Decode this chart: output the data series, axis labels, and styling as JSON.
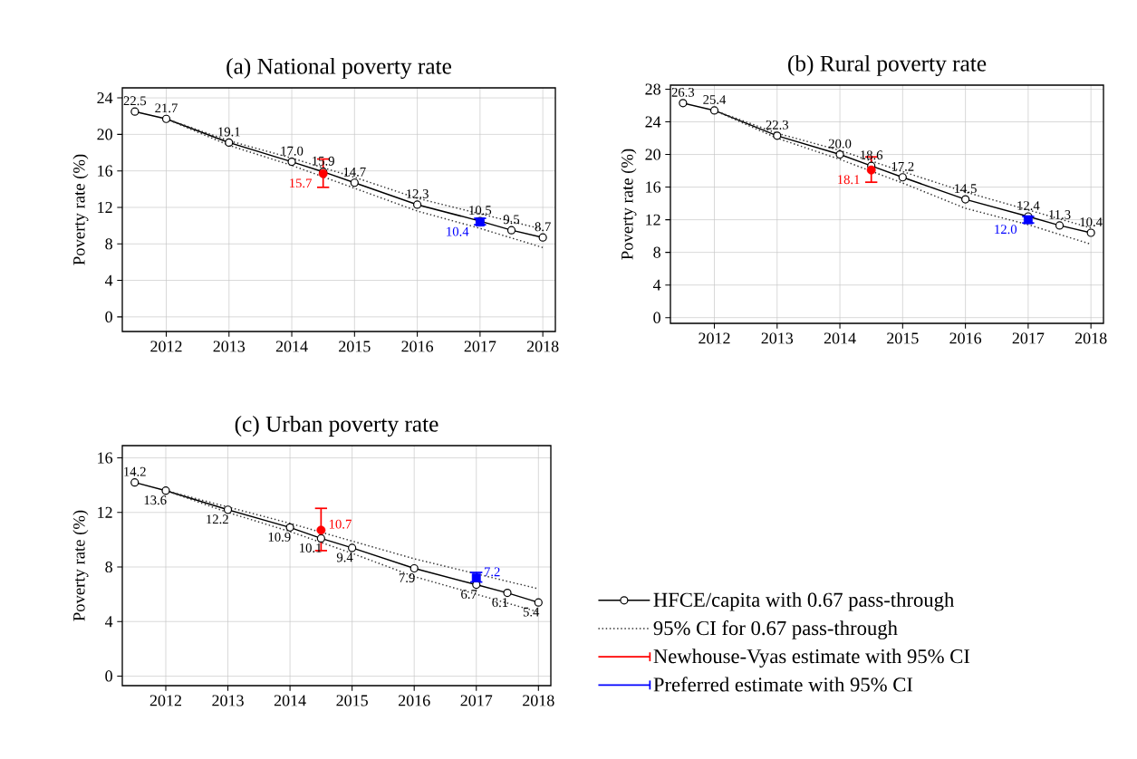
{
  "chart_data": [
    {
      "type": "line",
      "title": "(a) National poverty rate",
      "ylabel": "Poverty rate (%)",
      "xlim": [
        2011.3,
        2018.2
      ],
      "xticks": [
        2012,
        2013,
        2014,
        2015,
        2016,
        2017,
        2018
      ],
      "ylim": [
        -1.6,
        25.1
      ],
      "yticks": [
        0,
        4,
        8,
        12,
        16,
        20,
        24
      ],
      "grid": true,
      "series": [
        {
          "type": "line",
          "color": "#000000",
          "marker": "circle",
          "line_style": "solid",
          "x": [
            2011.5,
            2012,
            2013,
            2014,
            2014.5,
            2015,
            2016,
            2017,
            2017.5,
            2018
          ],
          "values": [
            22.5,
            21.7,
            19.1,
            17.0,
            15.9,
            14.7,
            12.3,
            10.5,
            9.5,
            8.7
          ],
          "value_labels": [
            "22.5",
            "21.7",
            "19.1",
            "17.0",
            "15.9",
            "14.7",
            "12.3",
            "10.5",
            "9.5",
            "8.7"
          ]
        },
        {
          "type": "line",
          "color": "#333333",
          "marker": "none",
          "line_style": "dotted",
          "x": [
            2012,
            2013,
            2014,
            2015,
            2016,
            2017,
            2018
          ],
          "values": [
            21.7,
            19.3,
            17.4,
            15.3,
            13.0,
            11.3,
            9.6
          ]
        },
        {
          "type": "line",
          "color": "#333333",
          "marker": "none",
          "line_style": "dotted",
          "x": [
            2012,
            2013,
            2014,
            2015,
            2016,
            2017,
            2018
          ],
          "values": [
            21.7,
            18.8,
            16.6,
            14.1,
            11.6,
            9.7,
            7.6
          ]
        },
        {
          "type": "scatter",
          "color": "#ff0000",
          "marker": "circle",
          "x": [
            2014.5
          ],
          "values": [
            15.7
          ],
          "errors": [
            [
              14.2,
              17.3
            ]
          ],
          "value_labels": [
            "15.7"
          ]
        },
        {
          "type": "scatter",
          "color": "#0000ff",
          "marker": "square",
          "x": [
            2017
          ],
          "values": [
            10.4
          ],
          "errors": [
            [
              10.1,
              10.8
            ]
          ],
          "value_labels": [
            "10.4"
          ]
        }
      ]
    },
    {
      "type": "line",
      "title": "(b) Rural poverty rate",
      "ylabel": "Poverty rate (%)",
      "xlim": [
        2011.3,
        2018.2
      ],
      "xticks": [
        2012,
        2013,
        2014,
        2015,
        2016,
        2017,
        2018
      ],
      "ylim": [
        -0.7,
        28.5
      ],
      "yticks": [
        0,
        4,
        8,
        12,
        16,
        20,
        24,
        28
      ],
      "grid": true,
      "series": [
        {
          "type": "line",
          "color": "#000000",
          "marker": "circle",
          "line_style": "solid",
          "x": [
            2011.5,
            2012,
            2013,
            2014,
            2014.5,
            2015,
            2016,
            2017,
            2017.5,
            2018
          ],
          "values": [
            26.3,
            25.4,
            22.3,
            20.0,
            18.6,
            17.2,
            14.5,
            12.4,
            11.3,
            10.4
          ],
          "value_labels": [
            "26.3",
            "25.4",
            "22.3",
            "20.0",
            "18.6",
            "17.2",
            "14.5",
            "12.4",
            "11.3",
            "10.4"
          ]
        },
        {
          "type": "line",
          "color": "#333333",
          "marker": "none",
          "line_style": "dotted",
          "x": [
            2012,
            2013,
            2014,
            2015,
            2016,
            2017,
            2018
          ],
          "values": [
            25.4,
            22.6,
            20.5,
            17.9,
            15.4,
            13.2,
            11.0
          ]
        },
        {
          "type": "line",
          "color": "#333333",
          "marker": "none",
          "line_style": "dotted",
          "x": [
            2012,
            2013,
            2014,
            2015,
            2016,
            2017,
            2018
          ],
          "values": [
            25.4,
            22.0,
            19.4,
            16.5,
            13.4,
            11.4,
            9.0
          ]
        },
        {
          "type": "scatter",
          "color": "#ff0000",
          "marker": "circle",
          "x": [
            2014.5
          ],
          "values": [
            18.1
          ],
          "errors": [
            [
              16.6,
              19.7
            ]
          ],
          "value_labels": [
            "18.1"
          ]
        },
        {
          "type": "scatter",
          "color": "#0000ff",
          "marker": "square",
          "x": [
            2017
          ],
          "values": [
            12.0
          ],
          "errors": [
            [
              11.6,
              12.4
            ]
          ],
          "value_labels": [
            "12.0"
          ]
        }
      ]
    },
    {
      "type": "line",
      "title": "(c) Urban poverty rate",
      "ylabel": "Poverty rate (%)",
      "xlim": [
        2011.3,
        2018.2
      ],
      "xticks": [
        2012,
        2013,
        2014,
        2015,
        2016,
        2017,
        2018
      ],
      "ylim": [
        -0.7,
        16.9
      ],
      "yticks": [
        0,
        4,
        8,
        12,
        16
      ],
      "grid": true,
      "legend": "right",
      "series": [
        {
          "type": "line",
          "name": "HFCE/capita with 0.67 pass-through",
          "color": "#000000",
          "marker": "circle",
          "line_style": "solid",
          "x": [
            2011.5,
            2012,
            2013,
            2014,
            2014.5,
            2015,
            2016,
            2017,
            2017.5,
            2018
          ],
          "values": [
            14.2,
            13.6,
            12.2,
            10.9,
            10.1,
            9.4,
            7.9,
            6.7,
            6.1,
            5.4
          ],
          "value_labels": [
            "14.2",
            "13.6",
            "12.2",
            "10.9",
            "10.1",
            "9.4",
            "7.9",
            "6.7",
            "6.1",
            "5.4"
          ]
        },
        {
          "type": "line",
          "name": "95% CI for 0.67 pass-through",
          "color": "#333333",
          "marker": "none",
          "line_style": "dotted",
          "x": [
            2012,
            2013,
            2014,
            2015,
            2016,
            2017,
            2018
          ],
          "values": [
            13.6,
            12.4,
            11.2,
            9.9,
            8.6,
            7.5,
            6.4
          ]
        },
        {
          "type": "line",
          "color": "#333333",
          "marker": "none",
          "line_style": "dotted",
          "x": [
            2012,
            2013,
            2014,
            2015,
            2016,
            2017,
            2018
          ],
          "values": [
            13.6,
            12.0,
            10.6,
            9.0,
            7.3,
            6.0,
            4.7
          ]
        },
        {
          "type": "scatter",
          "name": "Newhouse-Vyas estimate with 95% CI",
          "color": "#ff0000",
          "marker": "circle",
          "x": [
            2014.5
          ],
          "values": [
            10.7
          ],
          "errors": [
            [
              9.2,
              12.3
            ]
          ],
          "value_labels": [
            "10.7"
          ]
        },
        {
          "type": "scatter",
          "name": "Preferred estimate with 95% CI",
          "color": "#0000ff",
          "marker": "square",
          "x": [
            2017
          ],
          "values": [
            7.2
          ],
          "errors": [
            [
              6.9,
              7.6
            ]
          ],
          "value_labels": [
            "7.2"
          ]
        }
      ]
    }
  ]
}
